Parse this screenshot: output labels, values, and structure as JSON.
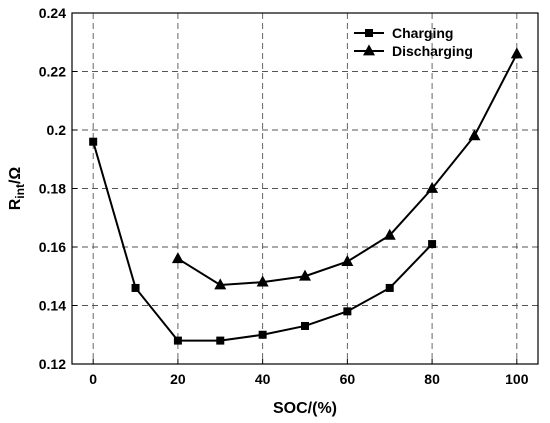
{
  "chart_data": {
    "type": "line",
    "xlabel": "SOC/(%)",
    "ylabel": {
      "main": "R",
      "sub": "int",
      "suffix": "/Ω"
    },
    "xlim": [
      -5,
      105
    ],
    "ylim": [
      0.12,
      0.24
    ],
    "xticks": [
      0,
      20,
      40,
      60,
      80,
      100
    ],
    "yticks": [
      0.12,
      0.14,
      0.16,
      0.18,
      0.2,
      0.22,
      0.24
    ],
    "grid": true,
    "grid_style": "dashed",
    "legend_position": "top-right",
    "series": [
      {
        "name": "Charging",
        "marker": "square",
        "color": "#000000",
        "points": [
          {
            "x": 0,
            "y": 0.196
          },
          {
            "x": 10,
            "y": 0.146
          },
          {
            "x": 20,
            "y": 0.128
          },
          {
            "x": 30,
            "y": 0.128
          },
          {
            "x": 40,
            "y": 0.13
          },
          {
            "x": 50,
            "y": 0.133
          },
          {
            "x": 60,
            "y": 0.138
          },
          {
            "x": 70,
            "y": 0.146
          },
          {
            "x": 80,
            "y": 0.161
          }
        ]
      },
      {
        "name": "Discharging",
        "marker": "triangle",
        "color": "#000000",
        "points": [
          {
            "x": 20,
            "y": 0.156
          },
          {
            "x": 30,
            "y": 0.147
          },
          {
            "x": 40,
            "y": 0.148
          },
          {
            "x": 50,
            "y": 0.15
          },
          {
            "x": 60,
            "y": 0.155
          },
          {
            "x": 70,
            "y": 0.164
          },
          {
            "x": 80,
            "y": 0.18
          },
          {
            "x": 90,
            "y": 0.198
          },
          {
            "x": 100,
            "y": 0.226
          }
        ]
      }
    ]
  }
}
